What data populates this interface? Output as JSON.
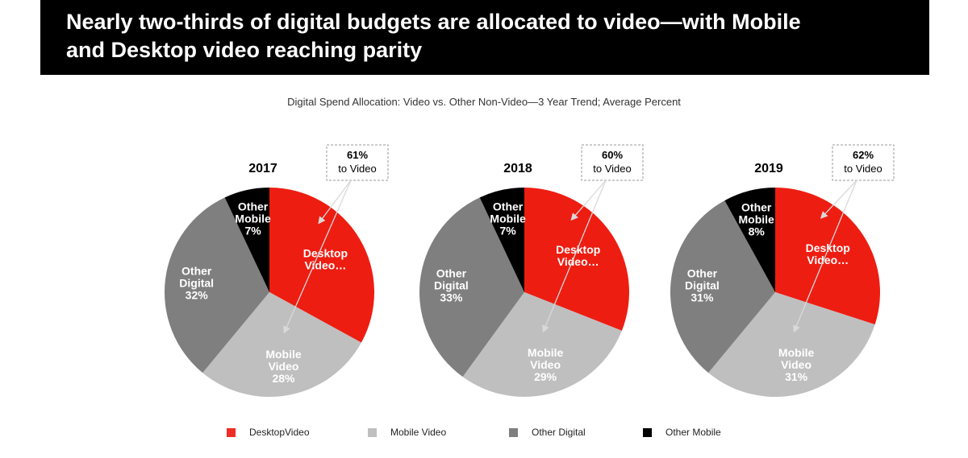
{
  "header": {
    "title_line1": "Nearly two-thirds of digital budgets are allocated to video—with Mobile",
    "title_line2": "and Desktop video reaching parity"
  },
  "chart_subtitle": "Digital Spend Allocation:  Video vs. Other Non-Video—3 Year Trend; Average Percent",
  "colors": {
    "desktop_video": "#ee1d12",
    "mobile_video": "#bfbfbf",
    "other_digital": "#7f7f7f",
    "other_mobile": "#000000"
  },
  "legend": [
    {
      "label": "DesktopVideo",
      "color": "#ee2e24"
    },
    {
      "label": "Mobile Video",
      "color": "#bfbfbf"
    },
    {
      "label": "Other Digital",
      "color": "#7f7f7f"
    },
    {
      "label": "Other Mobile",
      "color": "#000000"
    }
  ],
  "chart_data": [
    {
      "type": "pie",
      "title": "2017",
      "annotation": {
        "value": "61%",
        "text": "to Video"
      },
      "slices": [
        {
          "name": "Desktop Video",
          "value": 33,
          "label": [
            "Desktop",
            "Video…"
          ]
        },
        {
          "name": "Mobile Video",
          "value": 28,
          "label": [
            "Mobile",
            "Video",
            "28%"
          ]
        },
        {
          "name": "Other Digital",
          "value": 32,
          "label": [
            "Other",
            "Digital",
            "32%"
          ]
        },
        {
          "name": "Other Mobile",
          "value": 7,
          "label": [
            "Other",
            "Mobile",
            "7%"
          ]
        }
      ]
    },
    {
      "type": "pie",
      "title": "2018",
      "annotation": {
        "value": "60%",
        "text": "to Video"
      },
      "slices": [
        {
          "name": "Desktop Video",
          "value": 31,
          "label": [
            "Desktop",
            "Video…"
          ]
        },
        {
          "name": "Mobile Video",
          "value": 29,
          "label": [
            "Mobile",
            "Video",
            "29%"
          ]
        },
        {
          "name": "Other Digital",
          "value": 33,
          "label": [
            "Other",
            "Digital",
            "33%"
          ]
        },
        {
          "name": "Other Mobile",
          "value": 7,
          "label": [
            "Other",
            "Mobile",
            "7%"
          ]
        }
      ]
    },
    {
      "type": "pie",
      "title": "2019",
      "annotation": {
        "value": "62%",
        "text": "to Video"
      },
      "slices": [
        {
          "name": "Desktop Video",
          "value": 30,
          "label": [
            "Desktop",
            "Video…"
          ]
        },
        {
          "name": "Mobile Video",
          "value": 31,
          "label": [
            "Mobile",
            "Video",
            "31%"
          ]
        },
        {
          "name": "Other Digital",
          "value": 31,
          "label": [
            "Other",
            "Digital",
            "31%"
          ]
        },
        {
          "name": "Other Mobile",
          "value": 8,
          "label": [
            "Other",
            "Mobile",
            "8%"
          ]
        }
      ]
    }
  ]
}
